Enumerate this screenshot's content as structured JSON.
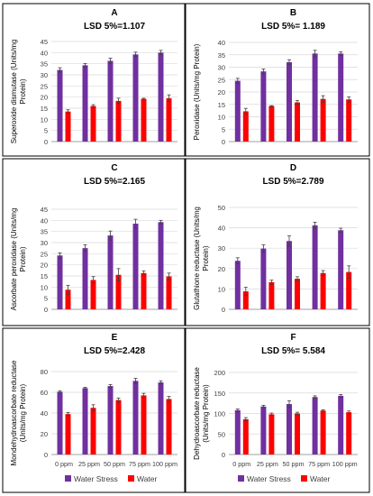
{
  "legend": {
    "water_stress": "Water Stress",
    "water": "Water"
  },
  "colors": {
    "water_stress": "#7030A0",
    "water": "#FF0000",
    "grid": "#d9d9d9",
    "axis": "#808080",
    "error": "#404040"
  },
  "chart_data": [
    {
      "type": "bar",
      "letter": "A",
      "title": "LSD 5%=1.107",
      "ylabel": [
        "Superoxide dismutase (Units/mg",
        "Protein)"
      ],
      "ylim": [
        0,
        45
      ],
      "yticks": [
        0,
        5,
        10,
        15,
        20,
        25,
        30,
        35,
        40,
        45
      ],
      "categories": [
        "0 ppm",
        "25 ppm",
        "50 ppm",
        "75 ppm",
        "100 ppm"
      ],
      "show_categories": false,
      "show_legend": false,
      "series": [
        {
          "name": "Water Stress",
          "values": [
            32.2,
            34.3,
            36.3,
            39.2,
            40.0
          ],
          "errors": [
            1.0,
            0.8,
            1.2,
            1.0,
            1.0
          ]
        },
        {
          "name": "Water",
          "values": [
            13.5,
            16.0,
            18.3,
            19.2,
            19.5
          ],
          "errors": [
            0.8,
            0.6,
            1.2,
            0.3,
            1.5
          ]
        }
      ]
    },
    {
      "type": "bar",
      "letter": "B",
      "title": "LSD 5%= 1.189",
      "ylabel": [
        "Peroxidase (Units/mg Protein)"
      ],
      "ylim": [
        0,
        40
      ],
      "yticks": [
        0,
        5,
        10,
        15,
        20,
        25,
        30,
        35,
        40
      ],
      "categories": [
        "0 ppm",
        "25 ppm",
        "50 ppm",
        "75 ppm",
        "100 ppm"
      ],
      "show_categories": false,
      "show_legend": false,
      "series": [
        {
          "name": "Water Stress",
          "values": [
            24.5,
            28.3,
            32.0,
            35.5,
            35.5
          ],
          "errors": [
            1.0,
            1.0,
            1.0,
            1.3,
            0.7
          ]
        },
        {
          "name": "Water",
          "values": [
            12.2,
            14.3,
            15.8,
            17.2,
            17.0
          ],
          "errors": [
            1.2,
            0.2,
            0.8,
            1.3,
            1.0
          ]
        }
      ]
    },
    {
      "type": "bar",
      "letter": "C",
      "title": "LSD 5%=2.165",
      "ylabel": [
        "Ascorbate peroxidase (Units/mg",
        "Protein)"
      ],
      "ylim": [
        0,
        45
      ],
      "yticks": [
        0,
        5,
        10,
        15,
        20,
        25,
        30,
        35,
        40,
        45
      ],
      "categories": [
        "0 ppm",
        "25 ppm",
        "50 ppm",
        "75 ppm",
        "100 ppm"
      ],
      "show_categories": false,
      "show_legend": false,
      "series": [
        {
          "name": "Water Stress",
          "values": [
            24.2,
            27.5,
            33.2,
            38.5,
            39.2
          ],
          "errors": [
            1.2,
            1.5,
            2.0,
            2.0,
            0.8
          ]
        },
        {
          "name": "Water",
          "values": [
            8.8,
            13.2,
            15.5,
            16.3,
            14.8
          ],
          "errors": [
            2.0,
            1.5,
            2.8,
            1.0,
            1.5
          ]
        }
      ]
    },
    {
      "type": "bar",
      "letter": "D",
      "title": "LSD 5%=2.789",
      "ylabel": [
        "Glutathione reductase (Units/mg",
        "Protein)"
      ],
      "ylim": [
        0,
        50
      ],
      "yticks": [
        0,
        10,
        20,
        30,
        40,
        50
      ],
      "categories": [
        "0 ppm",
        "25 ppm",
        "50 ppm",
        "75 ppm",
        "100 ppm"
      ],
      "show_categories": false,
      "show_legend": false,
      "series": [
        {
          "name": "Water Stress",
          "values": [
            23.8,
            29.8,
            33.5,
            41.2,
            38.8
          ],
          "errors": [
            1.5,
            1.8,
            2.5,
            1.5,
            1.0
          ]
        },
        {
          "name": "Water",
          "values": [
            8.8,
            13.3,
            15.0,
            17.8,
            18.3
          ],
          "errors": [
            2.0,
            1.0,
            1.0,
            1.2,
            3.0
          ]
        }
      ]
    },
    {
      "type": "bar",
      "letter": "E",
      "title": "LSD 5%=2.428",
      "ylabel": [
        "Mondehydroascorbate reductase",
        "(Units/mg Protein)"
      ],
      "ylim": [
        0,
        80
      ],
      "yticks": [
        0,
        20,
        40,
        60,
        80
      ],
      "categories": [
        "0 ppm",
        "25 ppm",
        "50 ppm",
        "75 ppm",
        "100 ppm"
      ],
      "show_categories": true,
      "show_legend": true,
      "series": [
        {
          "name": "Water Stress",
          "values": [
            60.5,
            64.0,
            66.0,
            71.0,
            69.5
          ],
          "errors": [
            1.0,
            0.8,
            1.5,
            2.5,
            1.5
          ]
        },
        {
          "name": "Water",
          "values": [
            39.0,
            45.0,
            52.5,
            57.0,
            53.5
          ],
          "errors": [
            1.5,
            3.0,
            2.0,
            2.0,
            2.5
          ]
        }
      ]
    },
    {
      "type": "bar",
      "letter": "F",
      "title": "LSD 5%= 5.584",
      "ylabel": [
        "Dehydroascorbate reductase",
        "(Units/mg Protein)"
      ],
      "ylim": [
        0,
        200
      ],
      "yticks": [
        0,
        50,
        100,
        150,
        200
      ],
      "categories": [
        "0 ppm",
        "25 ppm",
        "50 ppm",
        "75 ppm",
        "100 ppm"
      ],
      "show_categories": true,
      "show_legend": true,
      "series": [
        {
          "name": "Water Stress",
          "values": [
            108,
            117,
            123,
            140,
            143
          ],
          "errors": [
            3,
            3,
            8,
            3,
            3
          ]
        },
        {
          "name": "Water",
          "values": [
            86,
            98,
            100,
            107,
            103
          ],
          "errors": [
            4,
            3,
            3,
            2,
            3
          ]
        }
      ]
    }
  ]
}
